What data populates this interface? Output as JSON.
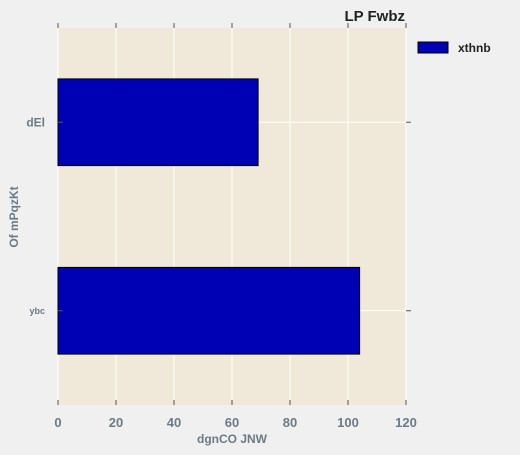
{
  "chart_data": {
    "type": "bar",
    "orientation": "horizontal",
    "title": "LP Fwbz",
    "xlabel": "dgnCO JNW",
    "ylabel": "Of mPqzKt",
    "categories": [
      "ybc",
      "dEl"
    ],
    "series": [
      {
        "name": "xthnb",
        "values": [
          104,
          69
        ],
        "color": "#0000b4"
      }
    ],
    "xlim": [
      0,
      120
    ],
    "xticks": [
      0,
      20,
      40,
      60,
      80,
      100,
      120
    ],
    "grid": true,
    "legend_position": "outside-top-right",
    "colors": {
      "plot_background": "#f0e8d8",
      "grid": "#ffffff",
      "tick_label": "#6b7b86",
      "bar_edge": "#000000"
    }
  }
}
